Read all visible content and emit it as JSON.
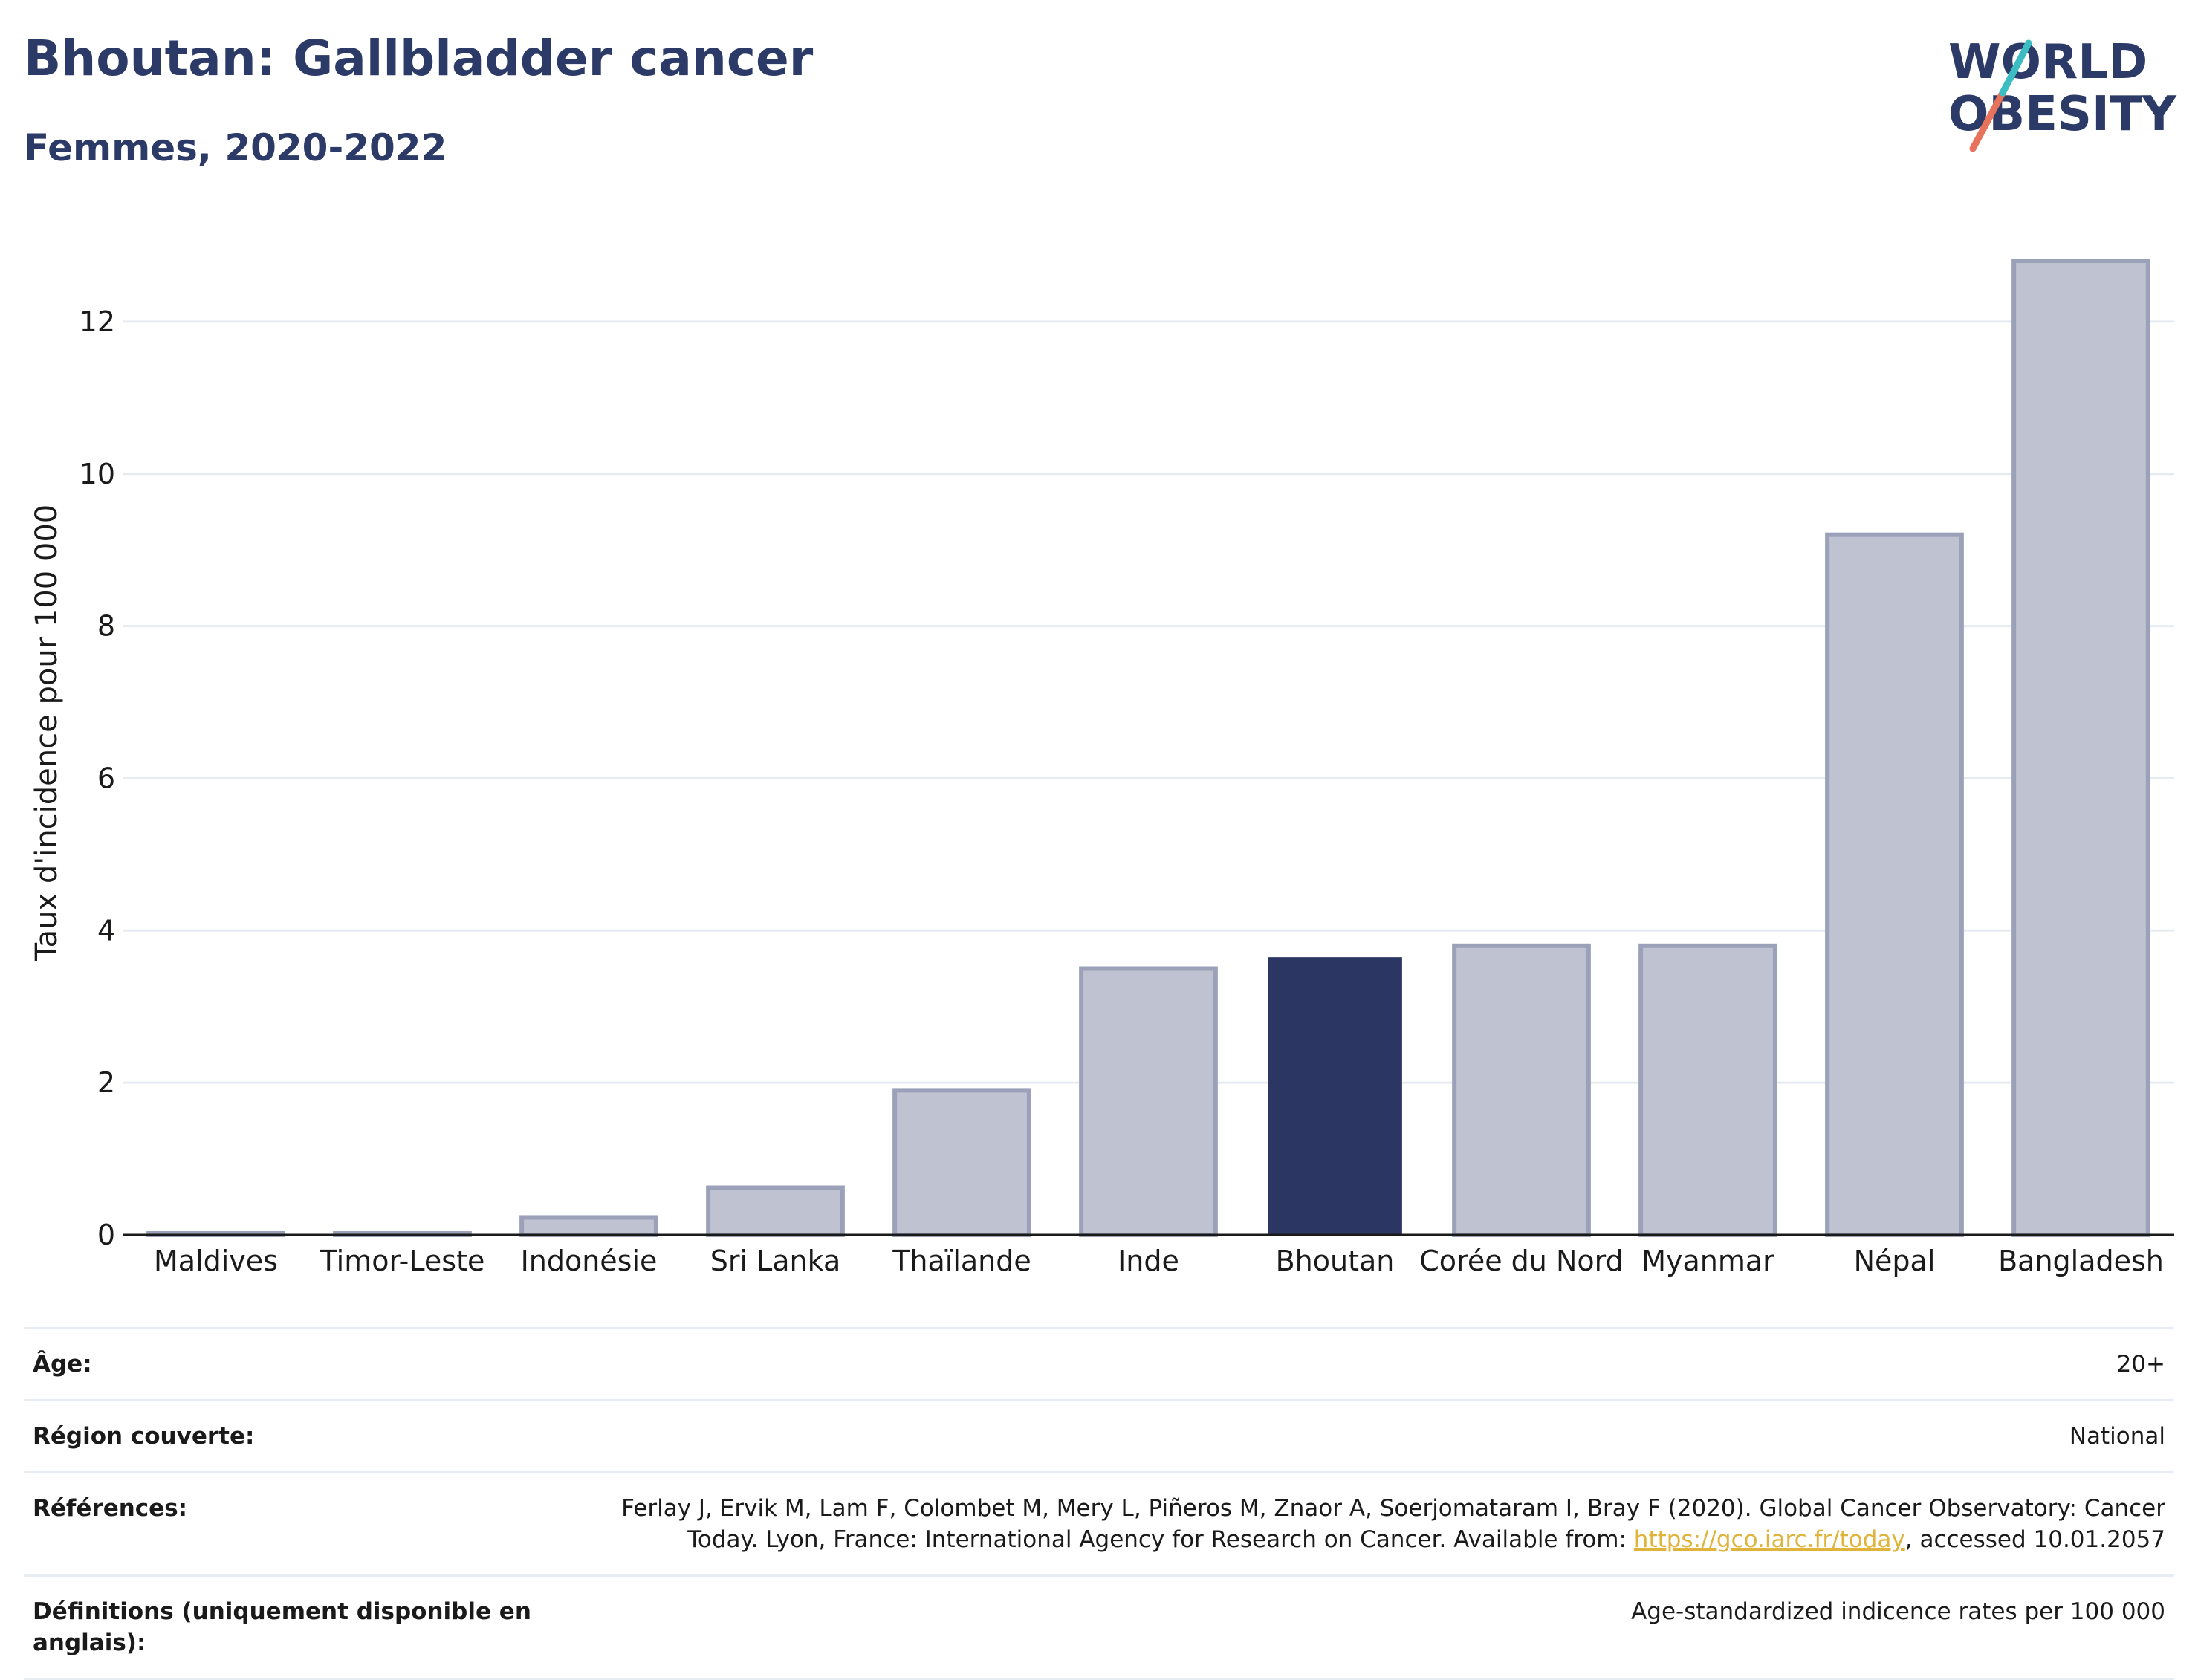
{
  "header": {
    "title": "Bhoutan: Gallbladder cancer",
    "subtitle": "Femmes, 2020-2022"
  },
  "logo": {
    "line1": "WORLD",
    "line2": "OBESITY",
    "text_color": "#2b3a67",
    "slash_colors": [
      "#3cbcc3",
      "#e8735c"
    ]
  },
  "colors": {
    "highlight_bar": "#2b3762",
    "other_bar_fill": "#bfc3d1",
    "other_bar_stroke": "#9aa1b8",
    "link": "#e0b43a"
  },
  "chart_data": {
    "type": "bar",
    "categories": [
      "Maldives",
      "Timor-Leste",
      "Indonésie",
      "Sri Lanka",
      "Thaïlande",
      "Inde",
      "Bhoutan",
      "Corée du Nord",
      "Myanmar",
      "Népal",
      "Bangladesh"
    ],
    "values": [
      0.02,
      0.02,
      0.23,
      0.62,
      1.9,
      3.5,
      3.65,
      3.8,
      3.8,
      9.2,
      12.8
    ],
    "highlight": "Bhoutan",
    "ylabel": "Taux d'incidence pour 100 000",
    "yticks": [
      0,
      2,
      4,
      6,
      8,
      10,
      12
    ],
    "ylim": [
      0,
      13.2
    ],
    "grid": true
  },
  "info": {
    "age_label": "Âge:",
    "age_value": "20+",
    "region_label": "Région couverte:",
    "region_value": "National",
    "ref_label": "Références:",
    "ref_text_line1": "Ferlay J, Ervik M, Lam F, Colombet M, Mery L, Piñeros M, Znaor A, Soerjomataram I, Bray F (2020). Global Cancer Observatory: Cancer",
    "ref_text_line2_a": "Today. Lyon, France: International Agency for Research on Cancer. Available from: ",
    "ref_link": "https://gco.iarc.fr/today",
    "ref_text_line2_b": ", accessed 10.01.2057",
    "def_label": "Définitions (uniquement disponible en anglais):",
    "def_value": "Age-standardized indicence rates per 100 000"
  }
}
